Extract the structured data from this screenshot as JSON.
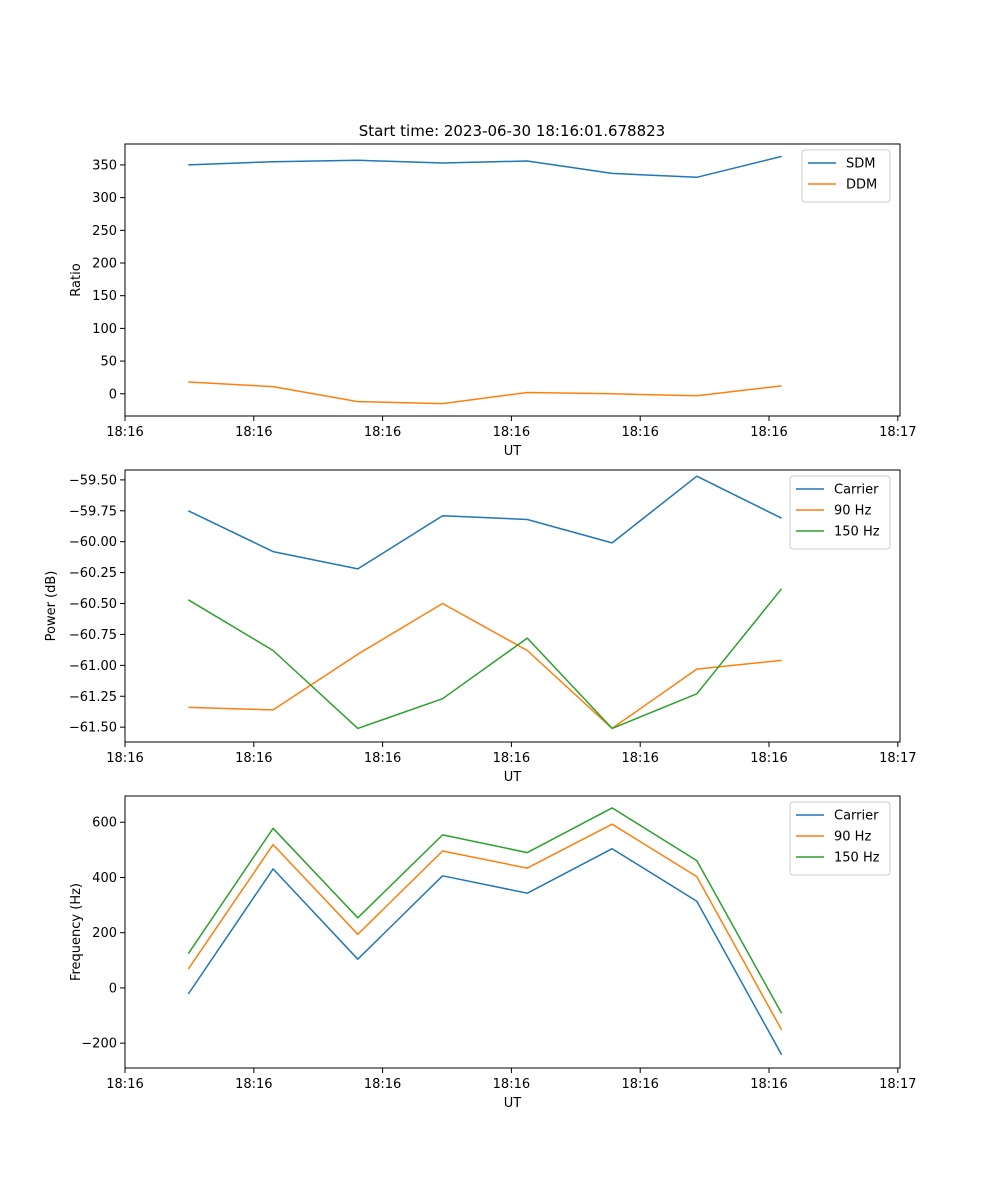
{
  "figure_title": "Start time: 2023-06-30 18:16:01.678823",
  "colors": {
    "c0": "#1f77b4",
    "c1": "#ff7f0e",
    "c2": "#2ca02c"
  },
  "chart_data": [
    {
      "type": "line",
      "xlabel": "UT",
      "ylabel": "Ratio",
      "xlim": [
        0,
        9.2
      ],
      "ylim": [
        -34,
        382
      ],
      "xtick_values": [
        0.0,
        1.529,
        3.058,
        4.587,
        6.116,
        7.645,
        9.174
      ],
      "xtick_labels": [
        "18:16",
        "18:16",
        "18:16",
        "18:16",
        "18:16",
        "18:16",
        "18:17"
      ],
      "yticks": [
        0,
        50,
        100,
        150,
        200,
        250,
        300,
        350
      ],
      "ytick_labels": [
        "0",
        "50",
        "100",
        "150",
        "200",
        "250",
        "300",
        "350"
      ],
      "legend_position": "top-right",
      "x": [
        0.752,
        1.758,
        2.764,
        3.77,
        4.776,
        5.782,
        6.788,
        7.794
      ],
      "series": [
        {
          "name": "SDM",
          "color": "#1f77b4",
          "values": [
            350,
            355,
            357,
            353,
            356,
            337,
            331,
            363
          ]
        },
        {
          "name": "DDM",
          "color": "#ff7f0e",
          "values": [
            18,
            11,
            -12,
            -15,
            2,
            0,
            -3,
            12
          ]
        }
      ]
    },
    {
      "type": "line",
      "xlabel": "UT",
      "ylabel": "Power (dB)",
      "xlim": [
        0,
        9.2
      ],
      "ylim": [
        -61.62,
        -59.42
      ],
      "xtick_values": [
        0.0,
        1.529,
        3.058,
        4.587,
        6.116,
        7.645,
        9.174
      ],
      "xtick_labels": [
        "18:16",
        "18:16",
        "18:16",
        "18:16",
        "18:16",
        "18:16",
        "18:17"
      ],
      "yticks": [
        -61.5,
        -61.25,
        -61.0,
        -60.75,
        -60.5,
        -60.25,
        -60.0,
        -59.75,
        -59.5
      ],
      "ytick_labels": [
        "−61.50",
        "−61.25",
        "−61.00",
        "−60.75",
        "−60.50",
        "−60.25",
        "−60.00",
        "−59.75",
        "−59.50"
      ],
      "legend_position": "top-right",
      "x": [
        0.752,
        1.758,
        2.764,
        3.77,
        4.776,
        5.782,
        6.788,
        7.794
      ],
      "series": [
        {
          "name": "Carrier",
          "color": "#1f77b4",
          "values": [
            -59.75,
            -60.08,
            -60.22,
            -59.79,
            -59.82,
            -60.01,
            -59.47,
            -59.81
          ]
        },
        {
          "name": "90 Hz",
          "color": "#ff7f0e",
          "values": [
            -61.34,
            -61.36,
            -60.91,
            -60.5,
            -60.88,
            -61.51,
            -61.03,
            -60.96
          ]
        },
        {
          "name": "150 Hz",
          "color": "#2ca02c",
          "values": [
            -60.47,
            -60.88,
            -61.51,
            -61.27,
            -60.78,
            -61.51,
            -61.23,
            -60.38
          ]
        }
      ]
    },
    {
      "type": "line",
      "xlabel": "UT",
      "ylabel": "Frequency (Hz)",
      "xlim": [
        0,
        9.2
      ],
      "ylim": [
        -290,
        695
      ],
      "xtick_values": [
        0.0,
        1.529,
        3.058,
        4.587,
        6.116,
        7.645,
        9.174
      ],
      "xtick_labels": [
        "18:16",
        "18:16",
        "18:16",
        "18:16",
        "18:16",
        "18:16",
        "18:17"
      ],
      "yticks": [
        -200,
        0,
        200,
        400,
        600
      ],
      "ytick_labels": [
        "−200",
        "0",
        "200",
        "400",
        "600"
      ],
      "legend_position": "top-right",
      "x": [
        0.752,
        1.758,
        2.764,
        3.77,
        4.776,
        5.782,
        6.788,
        7.794
      ],
      "series": [
        {
          "name": "Carrier",
          "color": "#1f77b4",
          "values": [
            -22,
            431,
            104,
            406,
            343,
            504,
            314,
            -242
          ]
        },
        {
          "name": "90 Hz",
          "color": "#ff7f0e",
          "values": [
            68,
            519,
            194,
            496,
            434,
            593,
            403,
            -152
          ]
        },
        {
          "name": "150 Hz",
          "color": "#2ca02c",
          "values": [
            124,
            578,
            254,
            554,
            490,
            652,
            461,
            -92
          ]
        }
      ]
    }
  ]
}
